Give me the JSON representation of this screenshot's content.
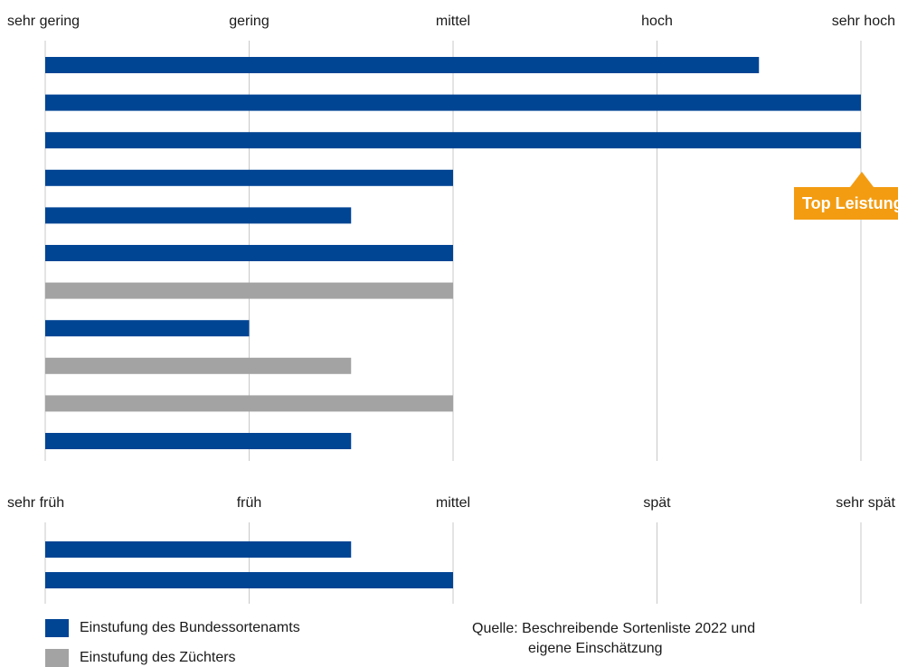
{
  "colors": {
    "bundessortenamt": "#004494",
    "zuechter": "#a3a3a3",
    "badge": "#f39c12"
  },
  "chart_data": [
    {
      "type": "bar",
      "orientation": "horizontal",
      "scale_labels": [
        "sehr gering",
        "gering",
        "mittel",
        "hoch",
        "sehr hoch"
      ],
      "xlim": [
        0,
        4
      ],
      "grid": true,
      "bars": [
        {
          "value": 3.5,
          "source": "bundessortenamt"
        },
        {
          "value": 4,
          "source": "bundessortenamt"
        },
        {
          "value": 4,
          "source": "bundessortenamt"
        },
        {
          "value": 2,
          "source": "bundessortenamt"
        },
        {
          "value": 1.5,
          "source": "bundessortenamt"
        },
        {
          "value": 2,
          "source": "bundessortenamt"
        },
        {
          "value": 2,
          "source": "zuechter"
        },
        {
          "value": 1,
          "source": "bundessortenamt"
        },
        {
          "value": 1.5,
          "source": "zuechter"
        },
        {
          "value": 2,
          "source": "zuechter"
        },
        {
          "value": 1.5,
          "source": "bundessortenamt"
        }
      ]
    },
    {
      "type": "bar",
      "orientation": "horizontal",
      "scale_labels": [
        "sehr früh",
        "früh",
        "mittel",
        "spät",
        "sehr spät"
      ],
      "xlim": [
        0,
        4
      ],
      "grid": true,
      "bars": [
        {
          "value": 1.5,
          "source": "bundessortenamt"
        },
        {
          "value": 2,
          "source": "bundessortenamt"
        }
      ]
    }
  ],
  "badge": {
    "label": "Top Leistung"
  },
  "legend": {
    "bundessortenamt": "Einstufung des Bundessortenamts",
    "zuechter": "Einstufung des Züchters"
  },
  "source": {
    "line1": "Quelle: Beschreibende Sortenliste 2022 und",
    "line2": "eigene Einschätzung"
  }
}
